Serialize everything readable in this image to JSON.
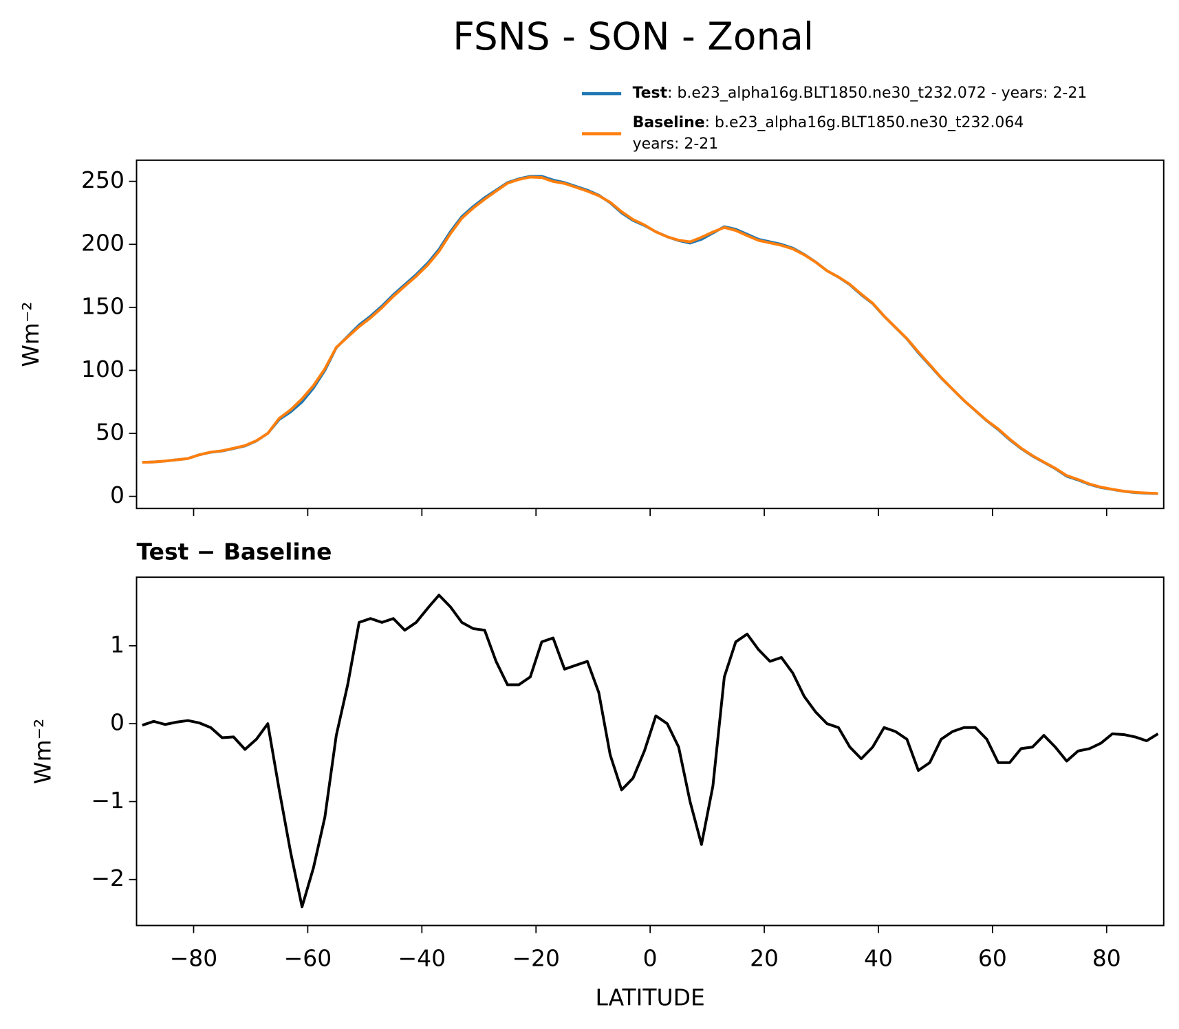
{
  "title": "FSNS - SON - Zonal",
  "chart_data": [
    {
      "type": "line",
      "x": [
        -89,
        -87,
        -85,
        -83,
        -81,
        -79,
        -77,
        -75,
        -73,
        -71,
        -69,
        -67,
        -65,
        -63,
        -61,
        -59,
        -57,
        -55,
        -53,
        -51,
        -49,
        -47,
        -45,
        -43,
        -41,
        -39,
        -37,
        -35,
        -33,
        -31,
        -29,
        -27,
        -25,
        -23,
        -21,
        -19,
        -17,
        -15,
        -13,
        -11,
        -9,
        -7,
        -5,
        -3,
        -1,
        1,
        3,
        5,
        7,
        9,
        11,
        13,
        15,
        17,
        19,
        21,
        23,
        25,
        27,
        29,
        31,
        33,
        35,
        37,
        39,
        41,
        43,
        45,
        47,
        49,
        51,
        53,
        55,
        57,
        59,
        61,
        63,
        65,
        67,
        69,
        71,
        73,
        75,
        77,
        79,
        81,
        83,
        85,
        87,
        89
      ],
      "series": [
        {
          "name": "Test",
          "label": [
            ": b.e23_alpha16g.BLT1850.ne30_t232.072 - years: 2-21"
          ],
          "color": "#1f77b4",
          "values": [
            27,
            27.3,
            28,
            29,
            30,
            33,
            35,
            36,
            38,
            40,
            44,
            50,
            61,
            67,
            75,
            86,
            100,
            118,
            127,
            136,
            143,
            151,
            160,
            168,
            176,
            185,
            196,
            210,
            222,
            230,
            237,
            243,
            249,
            252,
            254,
            254,
            251,
            249,
            246,
            243,
            239,
            233,
            225,
            219,
            215,
            210,
            206,
            203,
            201,
            204,
            209,
            214,
            212,
            208,
            204,
            202,
            200,
            197,
            192,
            186,
            179,
            174,
            168,
            160,
            153,
            143,
            134,
            125,
            114,
            104,
            94,
            85,
            76,
            68,
            60,
            53,
            45,
            38,
            32,
            27,
            22,
            16,
            13,
            9.5,
            7,
            5.5,
            4,
            3,
            2.5,
            2.2
          ]
        },
        {
          "name": "Baseline",
          "label": [
            ": b.e23_alpha16g.BLT1850.ne30_t232.064",
            "years: 2-21"
          ],
          "color": "#ff7f0e",
          "values": [
            27,
            27.3,
            28,
            29,
            30,
            33,
            35.1,
            36.2,
            38.2,
            40.3,
            44.2,
            50,
            61.9,
            68.7,
            77.4,
            87.9,
            101.2,
            118.2,
            126.5,
            134.7,
            141.7,
            149.7,
            158.7,
            166.8,
            174.7,
            183.5,
            194.4,
            208.5,
            220.7,
            228.8,
            235.8,
            242.2,
            248.5,
            251.5,
            253.4,
            253,
            249.9,
            248.3,
            245.3,
            242.2,
            238.6,
            233.4,
            225.9,
            219.7,
            215.4,
            209.9,
            206,
            203.3,
            202,
            205.6,
            209.8,
            213.4,
            211,
            206.9,
            203.1,
            201.2,
            199.2,
            196.4,
            191.7,
            185.9,
            179,
            174.1,
            168.3,
            160.5,
            153.3,
            143.1,
            134.1,
            125.2,
            114.6,
            104.5,
            94.2,
            85.1,
            76.1,
            68.1,
            60.2,
            53.5,
            45.5,
            38.3,
            32.3,
            27.2,
            22.3,
            16.5,
            13.4,
            9.8,
            7.3,
            5.6,
            4.1,
            3.2,
            2.7,
            2.3
          ]
        }
      ],
      "ylabel": "Wm⁻²",
      "xlim": [
        -90,
        90
      ],
      "xticks": [
        -80,
        -60,
        -40,
        -20,
        0,
        20,
        40,
        60,
        80
      ],
      "ylim": [
        -9.6,
        266.8
      ],
      "yticks": [
        0,
        50,
        100,
        150,
        200,
        250
      ]
    },
    {
      "type": "line",
      "title": "Test − Baseline",
      "x": [
        -89,
        -87,
        -85,
        -83,
        -81,
        -79,
        -77,
        -75,
        -73,
        -71,
        -69,
        -67,
        -65,
        -63,
        -61,
        -59,
        -57,
        -55,
        -53,
        -51,
        -49,
        -47,
        -45,
        -43,
        -41,
        -39,
        -37,
        -35,
        -33,
        -31,
        -29,
        -27,
        -25,
        -23,
        -21,
        -19,
        -17,
        -15,
        -13,
        -11,
        -9,
        -7,
        -5,
        -3,
        -1,
        1,
        3,
        5,
        7,
        9,
        11,
        13,
        15,
        17,
        19,
        21,
        23,
        25,
        27,
        29,
        31,
        33,
        35,
        37,
        39,
        41,
        43,
        45,
        47,
        49,
        51,
        53,
        55,
        57,
        59,
        61,
        63,
        65,
        67,
        69,
        71,
        73,
        75,
        77,
        79,
        81,
        83,
        85,
        87,
        89
      ],
      "series": [
        {
          "color": "#000000",
          "values": [
            -0.02,
            0.03,
            -0.01,
            0.02,
            0.04,
            0.01,
            -0.05,
            -0.18,
            -0.17,
            -0.33,
            -0.2,
            0,
            -0.85,
            -1.65,
            -2.35,
            -1.85,
            -1.2,
            -0.15,
            0.5,
            1.3,
            1.35,
            1.3,
            1.35,
            1.2,
            1.3,
            1.48,
            1.65,
            1.5,
            1.3,
            1.22,
            1.2,
            0.8,
            0.5,
            0.5,
            0.6,
            1.05,
            1.1,
            0.7,
            0.75,
            0.8,
            0.4,
            -0.4,
            -0.85,
            -0.7,
            -0.35,
            0.1,
            0,
            -0.3,
            -1,
            -1.55,
            -0.8,
            0.6,
            1.05,
            1.15,
            0.95,
            0.8,
            0.85,
            0.65,
            0.35,
            0.15,
            0,
            -0.05,
            -0.3,
            -0.45,
            -0.3,
            -0.05,
            -0.1,
            -0.2,
            -0.6,
            -0.5,
            -0.2,
            -0.1,
            -0.05,
            -0.05,
            -0.2,
            -0.5,
            -0.5,
            -0.32,
            -0.3,
            -0.15,
            -0.3,
            -0.48,
            -0.35,
            -0.32,
            -0.25,
            -0.13,
            -0.14,
            -0.17,
            -0.22,
            -0.13
          ]
        }
      ],
      "xlabel": "LATITUDE",
      "ylabel": "Wm⁻²",
      "xlim": [
        -90,
        90
      ],
      "xticks": [
        {
          "value": -80,
          "label": "−80"
        },
        {
          "value": -60,
          "label": "−60"
        },
        {
          "value": -40,
          "label": "−40"
        },
        {
          "value": -20,
          "label": "−20"
        },
        0,
        20,
        40,
        60,
        80
      ],
      "ylim": [
        -2.59,
        1.88
      ],
      "yticks": [
        {
          "value": -2,
          "label": "−2"
        },
        {
          "value": -1,
          "label": "−1"
        },
        0,
        1
      ]
    }
  ]
}
